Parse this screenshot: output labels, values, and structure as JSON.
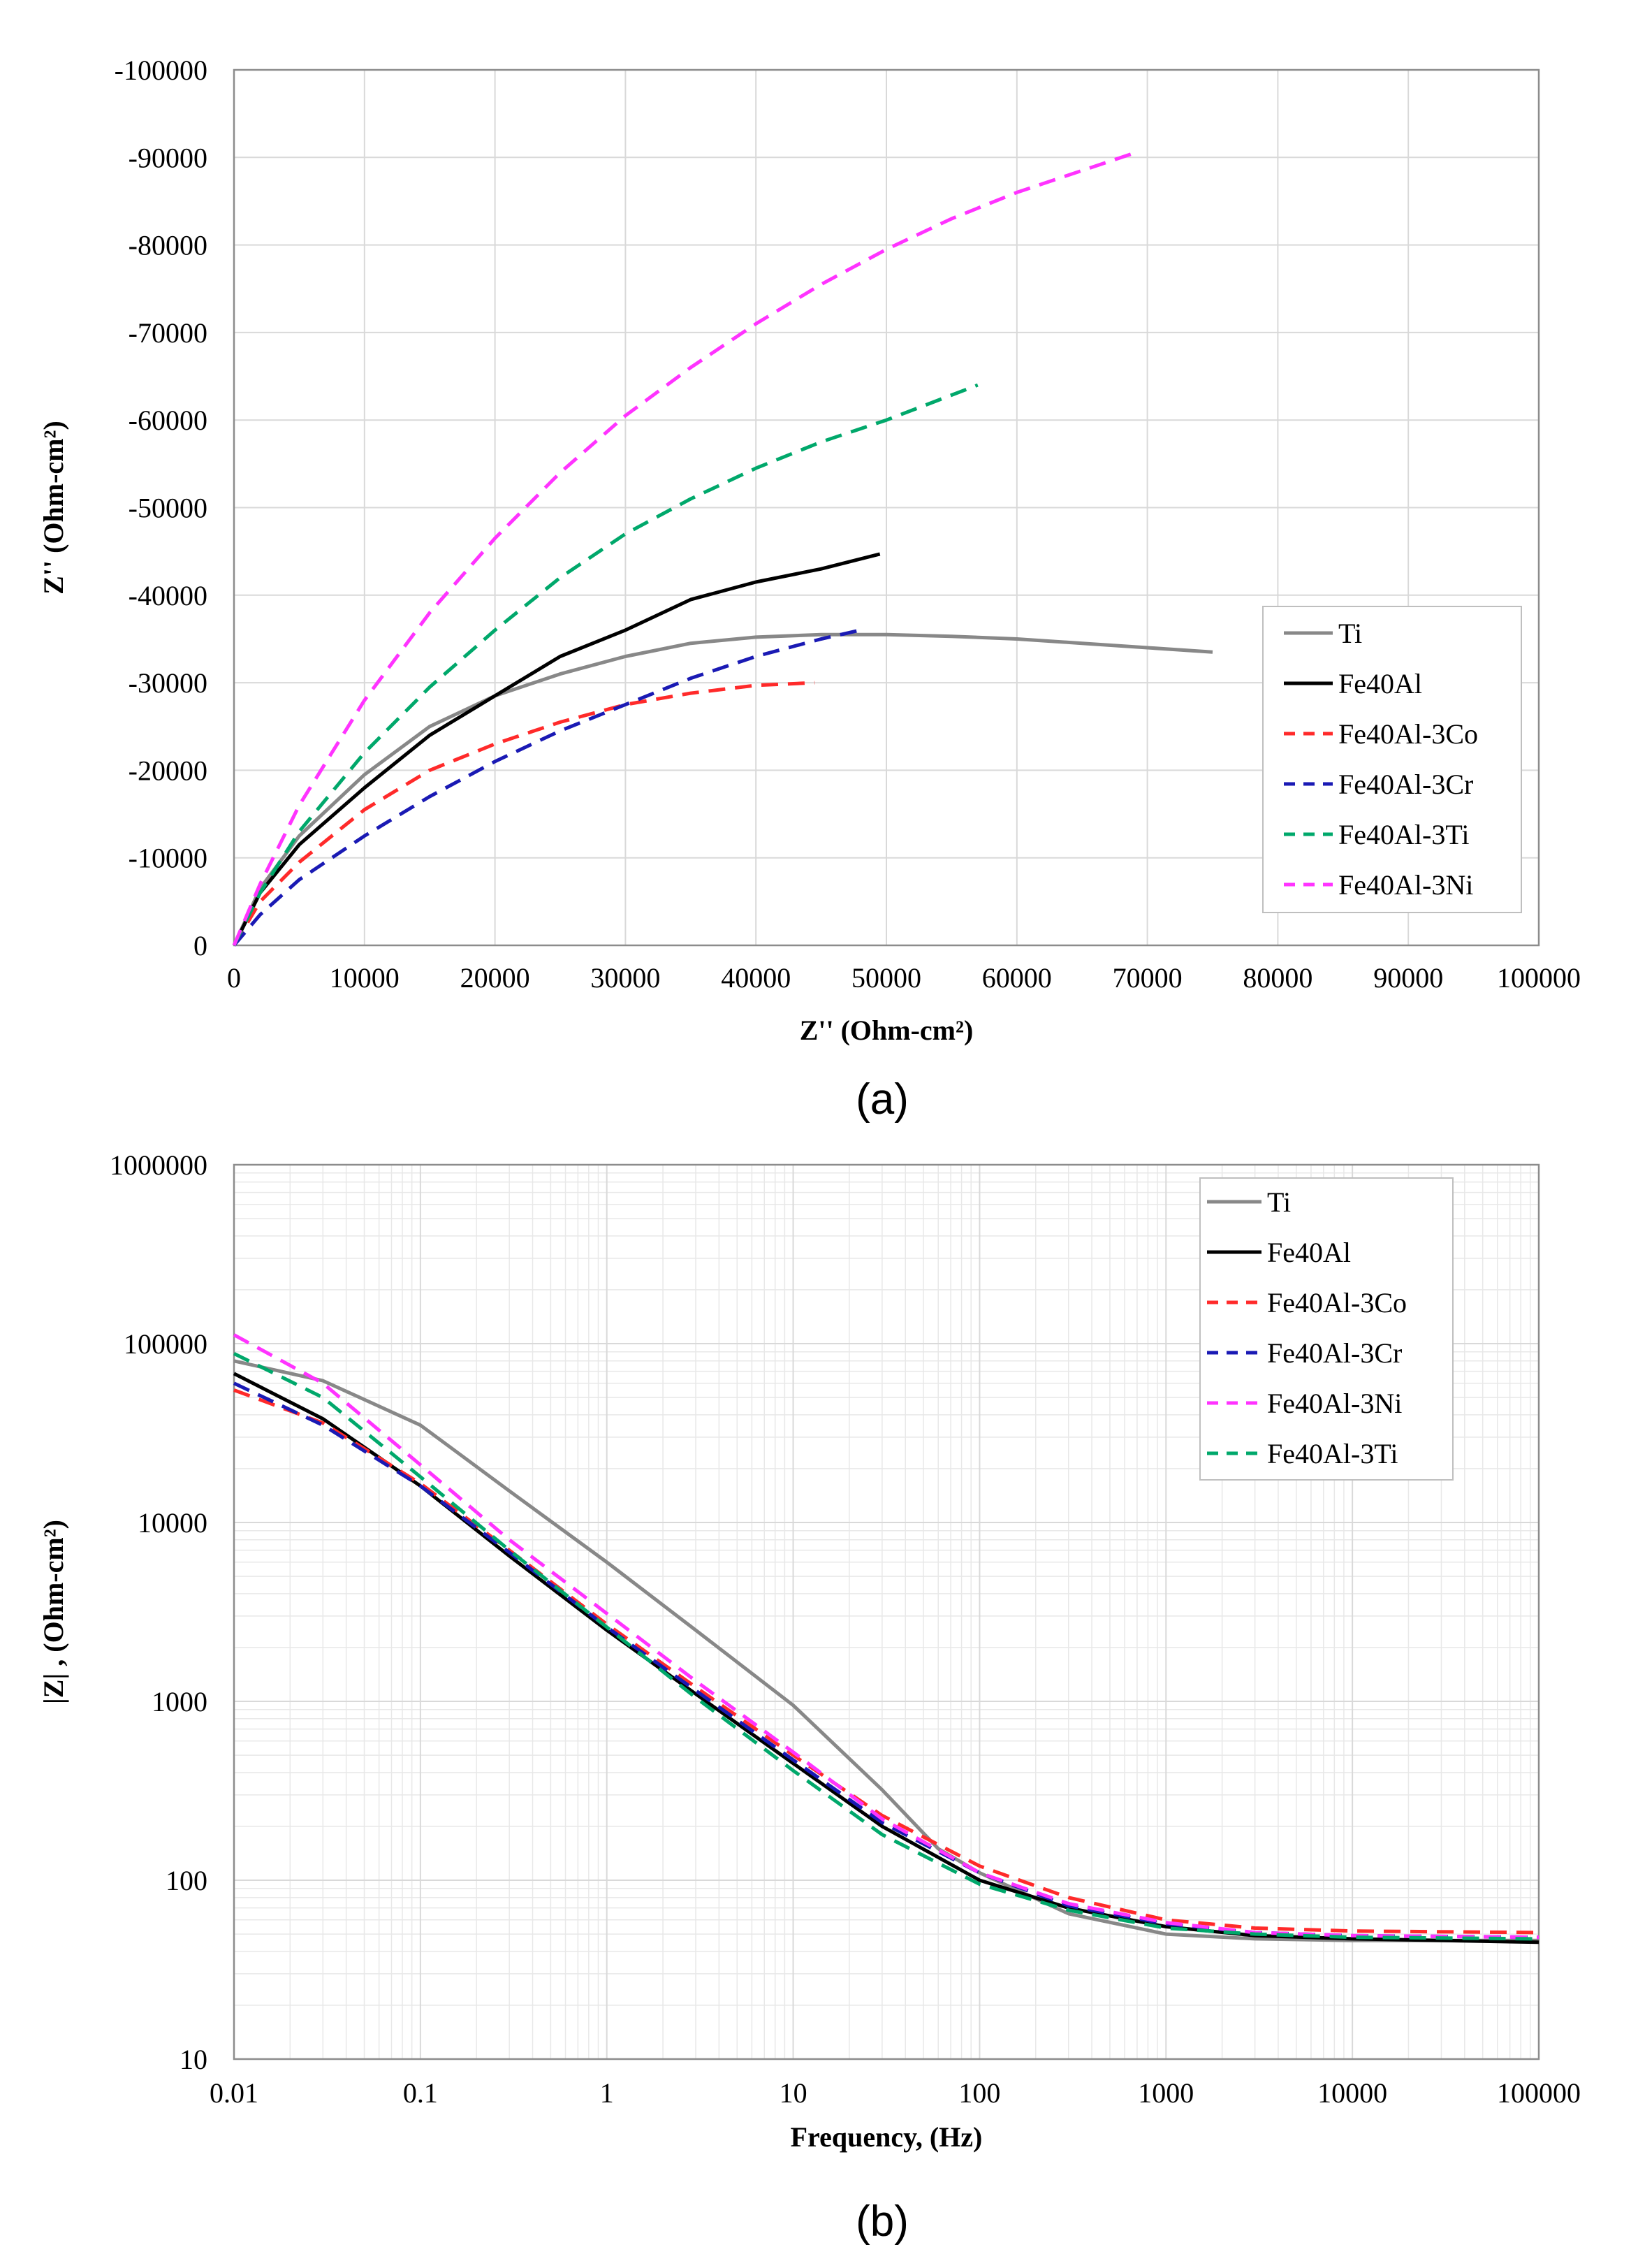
{
  "chart_data": [
    {
      "type": "line",
      "panel_label": "(a)",
      "xlabel": "Z'' (Ohm-cm²)",
      "ylabel": "Z'' (Ohm-cm²)",
      "xlim": [
        0,
        100000
      ],
      "ylim": [
        0,
        -100000
      ],
      "grid": true,
      "legend_position": "right",
      "x_ticks": [
        "0",
        "10000",
        "20000",
        "30000",
        "40000",
        "50000",
        "60000",
        "70000",
        "80000",
        "90000",
        "100000"
      ],
      "y_ticks": [
        "0",
        "-10000",
        "-20000",
        "-30000",
        "-40000",
        "-50000",
        "-60000",
        "-70000",
        "-80000",
        "-90000",
        "-100000"
      ],
      "series": [
        {
          "name": "Ti",
          "color": "#888888",
          "dash": "solid",
          "x": [
            0,
            2000,
            5000,
            10000,
            15000,
            20000,
            25000,
            30000,
            35000,
            40000,
            45000,
            50000,
            55000,
            60000,
            65000,
            70000,
            75000
          ],
          "y": [
            0,
            -6500,
            -12500,
            -19500,
            -25000,
            -28500,
            -31000,
            -33000,
            -34500,
            -35200,
            -35500,
            -35500,
            -35300,
            -35000,
            -34500,
            -34000,
            -33500
          ]
        },
        {
          "name": "Fe40Al",
          "color": "#000000",
          "dash": "solid",
          "x": [
            0,
            2000,
            5000,
            10000,
            15000,
            20000,
            25000,
            30000,
            35000,
            40000,
            45000,
            49500
          ],
          "y": [
            0,
            -6000,
            -11500,
            -18000,
            -24000,
            -28500,
            -33000,
            -36000,
            -39500,
            -41500,
            -43000,
            -44700
          ]
        },
        {
          "name": "Fe40Al-3Co",
          "color": "#ff2a2a",
          "dash": "dashed",
          "x": [
            0,
            2000,
            5000,
            10000,
            15000,
            20000,
            25000,
            30000,
            35000,
            40000,
            44500
          ],
          "y": [
            0,
            -5000,
            -9500,
            -15500,
            -20000,
            -23000,
            -25500,
            -27500,
            -28800,
            -29700,
            -30000
          ]
        },
        {
          "name": "Fe40Al-3Cr",
          "color": "#1a1ab4",
          "dash": "dashed",
          "x": [
            0,
            2000,
            5000,
            10000,
            15000,
            20000,
            25000,
            30000,
            35000,
            40000,
            45000,
            48000
          ],
          "y": [
            0,
            -3500,
            -7500,
            -12500,
            -17000,
            -21000,
            -24500,
            -27500,
            -30500,
            -33000,
            -35000,
            -36000
          ]
        },
        {
          "name": "Fe40Al-3Ti",
          "color": "#00a86b",
          "dash": "dashed",
          "x": [
            0,
            2000,
            5000,
            10000,
            15000,
            20000,
            25000,
            30000,
            35000,
            40000,
            45000,
            50000,
            57000
          ],
          "y": [
            0,
            -6000,
            -13000,
            -22000,
            -29500,
            -36000,
            -42000,
            -47000,
            -51000,
            -54500,
            -57500,
            -60000,
            -64000
          ]
        },
        {
          "name": "Fe40Al-3Ni",
          "color": "#ff33ff",
          "dash": "dashed",
          "x": [
            0,
            2000,
            5000,
            10000,
            15000,
            20000,
            25000,
            30000,
            35000,
            40000,
            45000,
            50000,
            55000,
            60000,
            65000,
            69000
          ],
          "y": [
            0,
            -7000,
            -16000,
            -28000,
            -38000,
            -46500,
            -54000,
            -60500,
            -66000,
            -71000,
            -75500,
            -79500,
            -83000,
            -86000,
            -88500,
            -90500
          ]
        }
      ]
    },
    {
      "type": "line",
      "panel_label": "(b)",
      "xlabel": "Frequency, (Hz)",
      "ylabel": "|Z| , (Ohm-cm²)",
      "xscale": "log",
      "yscale": "log",
      "xlim": [
        0.01,
        100000
      ],
      "ylim": [
        10,
        1000000
      ],
      "grid": true,
      "legend_position": "top-right",
      "x_ticks": [
        "0.01",
        "0.1",
        "1",
        "10",
        "100",
        "1000",
        "10000",
        "100000"
      ],
      "y_ticks": [
        "10",
        "100",
        "1000",
        "10000",
        "100000",
        "1000000"
      ],
      "series": [
        {
          "name": "Ti",
          "color": "#888888",
          "dash": "solid",
          "x": [
            0.01,
            0.03,
            0.1,
            0.3,
            1,
            3,
            10,
            30,
            60,
            100,
            300,
            1000,
            3000,
            10000,
            100000
          ],
          "y": [
            80000,
            62000,
            35000,
            15000,
            6000,
            2500,
            950,
            320,
            150,
            110,
            65,
            50,
            47,
            46,
            46
          ]
        },
        {
          "name": "Fe40Al",
          "color": "#000000",
          "dash": "solid",
          "x": [
            0.01,
            0.03,
            0.1,
            0.3,
            1,
            3,
            10,
            30,
            100,
            300,
            1000,
            3000,
            10000,
            100000
          ],
          "y": [
            68000,
            38000,
            16000,
            6500,
            2500,
            1100,
            450,
            200,
            100,
            70,
            55,
            49,
            47,
            45
          ]
        },
        {
          "name": "Fe40Al-3Co",
          "color": "#ff2a2a",
          "dash": "dashed",
          "x": [
            0.01,
            0.03,
            0.1,
            0.3,
            1,
            3,
            10,
            30,
            100,
            300,
            1000,
            3000,
            10000,
            100000
          ],
          "y": [
            55000,
            36000,
            16500,
            7000,
            2700,
            1200,
            500,
            230,
            120,
            80,
            60,
            54,
            52,
            51
          ]
        },
        {
          "name": "Fe40Al-3Cr",
          "color": "#1a1ab4",
          "dash": "dashed",
          "x": [
            0.01,
            0.03,
            0.1,
            0.3,
            1,
            3,
            10,
            30,
            100,
            300,
            1000,
            3000,
            10000,
            100000
          ],
          "y": [
            60000,
            35000,
            16000,
            6800,
            2600,
            1150,
            470,
            210,
            110,
            72,
            57,
            51,
            49,
            48
          ]
        },
        {
          "name": "Fe40Al-3Ni",
          "color": "#ff33ff",
          "dash": "dashed",
          "x": [
            0.01,
            0.03,
            0.1,
            0.3,
            1,
            3,
            10,
            30,
            100,
            300,
            1000,
            3000,
            10000,
            100000
          ],
          "y": [
            112000,
            60000,
            21000,
            8000,
            3100,
            1300,
            520,
            220,
            110,
            74,
            58,
            51,
            49,
            48
          ]
        },
        {
          "name": "Fe40Al-3Ti",
          "color": "#00a86b",
          "dash": "dashed",
          "x": [
            0.01,
            0.03,
            0.1,
            0.3,
            1,
            3,
            10,
            30,
            100,
            300,
            1000,
            3000,
            10000,
            100000
          ],
          "y": [
            88000,
            50000,
            18000,
            7000,
            2600,
            1050,
            410,
            180,
            95,
            68,
            54,
            50,
            48,
            47
          ]
        }
      ]
    }
  ]
}
